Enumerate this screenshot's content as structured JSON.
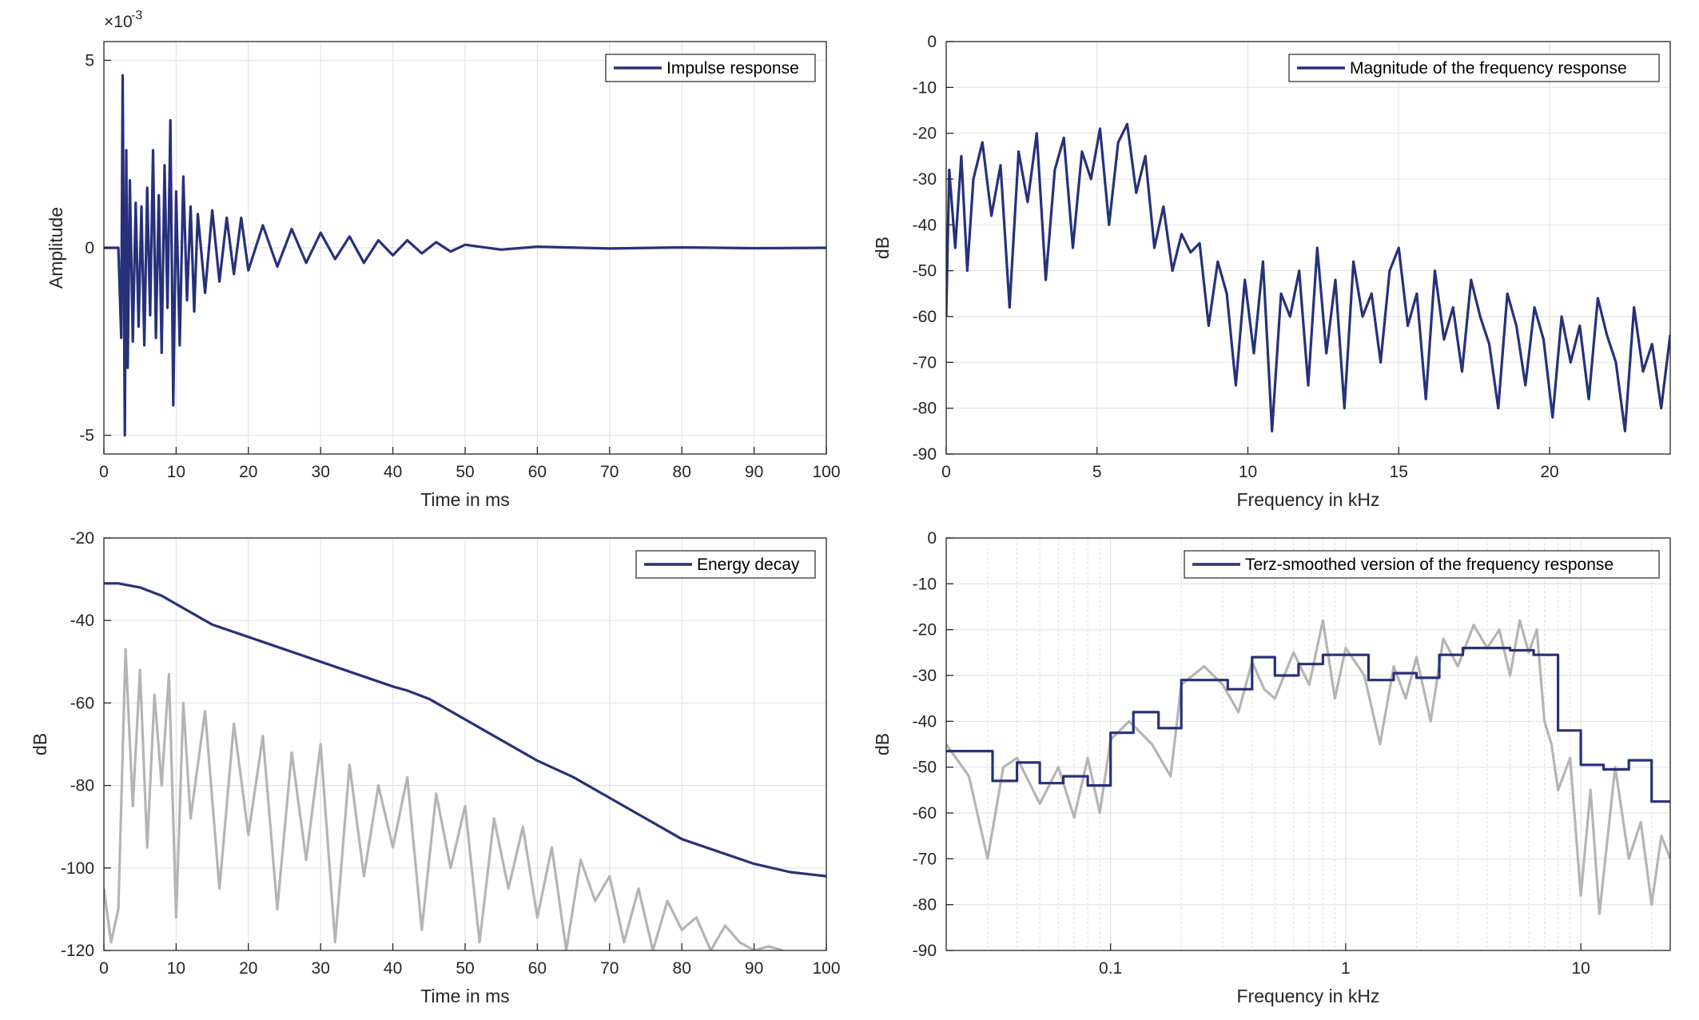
{
  "chart_data": [
    {
      "id": "impulse",
      "type": "line",
      "xlabel": "Time in ms",
      "ylabel": "Amplitude",
      "xlim": [
        0,
        100
      ],
      "ylim": [
        -5.5,
        5.5
      ],
      "exponent_label": "×10",
      "exponent_power": "-3",
      "xticks": [
        0,
        10,
        20,
        30,
        40,
        50,
        60,
        70,
        80,
        90,
        100
      ],
      "xtick_labels": [
        "0",
        "10",
        "20",
        "30",
        "40",
        "50",
        "60",
        "70",
        "80",
        "90",
        "100"
      ],
      "yticks": [
        -5,
        0,
        5
      ],
      "ytick_labels": [
        "-5",
        "0",
        "5"
      ],
      "grid": true,
      "legend_position": "top-right",
      "series": [
        {
          "name": "Impulse response",
          "color": "#27317a",
          "x": [
            0,
            2,
            2.4,
            2.6,
            2.9,
            3.1,
            3.3,
            3.6,
            4,
            4.4,
            4.8,
            5.2,
            5.6,
            6,
            6.4,
            6.8,
            7.2,
            7.6,
            8,
            8.4,
            8.8,
            9.2,
            9.6,
            10,
            10.5,
            11,
            11.5,
            12,
            12.5,
            13,
            14,
            15,
            16,
            17,
            18,
            19,
            20,
            22,
            24,
            26,
            28,
            30,
            32,
            34,
            36,
            38,
            40,
            42,
            44,
            46,
            48,
            50,
            55,
            60,
            70,
            80,
            90,
            100
          ],
          "y": [
            0,
            0,
            -2.4,
            4.6,
            -5,
            2.6,
            -3.2,
            1.8,
            -2.5,
            1.2,
            -2.1,
            1.1,
            -2.6,
            1.6,
            -1.8,
            2.6,
            -2.4,
            1.4,
            -2.8,
            2.2,
            -1.6,
            3.4,
            -4.2,
            1.5,
            -2.6,
            1.9,
            -1.4,
            1.1,
            -1.7,
            0.9,
            -1.2,
            1,
            -0.9,
            0.8,
            -0.7,
            0.8,
            -0.6,
            0.6,
            -0.5,
            0.5,
            -0.4,
            0.4,
            -0.3,
            0.3,
            -0.4,
            0.2,
            -0.2,
            0.2,
            -0.15,
            0.15,
            -0.1,
            0.08,
            -0.05,
            0.03,
            -0.02,
            0.01,
            -0.01,
            0
          ]
        }
      ]
    },
    {
      "id": "magnitude",
      "type": "line",
      "xlabel": "Frequency in kHz",
      "ylabel": "dB",
      "xlim": [
        0,
        24
      ],
      "ylim": [
        -90,
        0
      ],
      "xticks": [
        0,
        5,
        10,
        15,
        20
      ],
      "xtick_labels": [
        "0",
        "5",
        "10",
        "15",
        "20"
      ],
      "yticks": [
        0,
        -10,
        -20,
        -30,
        -40,
        -50,
        -60,
        -70,
        -80,
        -90
      ],
      "ytick_labels": [
        "0",
        "-10",
        "-20",
        "-30",
        "-40",
        "-50",
        "-60",
        "-70",
        "-80",
        "-90"
      ],
      "grid": true,
      "legend_position": "top-right",
      "series": [
        {
          "name": "Magnitude of the frequency response",
          "color": "#27317a",
          "x": [
            0,
            0.1,
            0.3,
            0.5,
            0.7,
            0.9,
            1.2,
            1.5,
            1.8,
            2.1,
            2.4,
            2.7,
            3.0,
            3.3,
            3.6,
            3.9,
            4.2,
            4.5,
            4.8,
            5.1,
            5.4,
            5.7,
            6.0,
            6.3,
            6.6,
            6.9,
            7.2,
            7.5,
            7.8,
            8.1,
            8.4,
            8.7,
            9.0,
            9.3,
            9.6,
            9.9,
            10.2,
            10.5,
            10.8,
            11.1,
            11.4,
            11.7,
            12.0,
            12.3,
            12.6,
            12.9,
            13.2,
            13.5,
            13.8,
            14.1,
            14.4,
            14.7,
            15.0,
            15.3,
            15.6,
            15.9,
            16.2,
            16.5,
            16.8,
            17.1,
            17.4,
            17.7,
            18.0,
            18.3,
            18.6,
            18.9,
            19.2,
            19.5,
            19.8,
            20.1,
            20.4,
            20.7,
            21.0,
            21.3,
            21.6,
            21.9,
            22.2,
            22.5,
            22.8,
            23.1,
            23.4,
            23.7,
            24.0
          ],
          "y": [
            -60,
            -28,
            -45,
            -25,
            -50,
            -30,
            -22,
            -38,
            -27,
            -58,
            -24,
            -35,
            -20,
            -52,
            -28,
            -21,
            -45,
            -24,
            -30,
            -19,
            -40,
            -22,
            -18,
            -33,
            -25,
            -45,
            -36,
            -50,
            -42,
            -46,
            -44,
            -62,
            -48,
            -55,
            -75,
            -52,
            -68,
            -48,
            -85,
            -55,
            -60,
            -50,
            -75,
            -45,
            -68,
            -52,
            -80,
            -48,
            -60,
            -55,
            -70,
            -50,
            -45,
            -62,
            -55,
            -78,
            -50,
            -65,
            -58,
            -72,
            -52,
            -60,
            -66,
            -80,
            -55,
            -62,
            -75,
            -58,
            -65,
            -82,
            -60,
            -70,
            -62,
            -78,
            -56,
            -64,
            -70,
            -85,
            -58,
            -72,
            -66,
            -80,
            -64
          ]
        }
      ]
    },
    {
      "id": "energy",
      "type": "line",
      "xlabel": "Time in ms",
      "ylabel": "dB",
      "xlim": [
        0,
        100
      ],
      "ylim": [
        -120,
        -20
      ],
      "xticks": [
        0,
        10,
        20,
        30,
        40,
        50,
        60,
        70,
        80,
        90,
        100
      ],
      "xtick_labels": [
        "0",
        "10",
        "20",
        "30",
        "40",
        "50",
        "60",
        "70",
        "80",
        "90",
        "100"
      ],
      "yticks": [
        -20,
        -40,
        -60,
        -80,
        -100,
        -120
      ],
      "ytick_labels": [
        "-20",
        "-40",
        "-60",
        "-80",
        "-100",
        "-120"
      ],
      "grid": true,
      "legend_position": "top-right",
      "series": [
        {
          "name": "Energy decay",
          "color": "#27317a",
          "x": [
            0,
            2,
            5,
            8,
            10,
            15,
            20,
            25,
            30,
            35,
            40,
            42,
            45,
            50,
            55,
            60,
            65,
            70,
            75,
            80,
            85,
            90,
            95,
            100
          ],
          "y": [
            -31,
            -31,
            -32,
            -34,
            -36,
            -41,
            -44,
            -47,
            -50,
            -53,
            -56,
            -57,
            -59,
            -64,
            -69,
            -74,
            -78,
            -83,
            -88,
            -93,
            -96,
            -99,
            -101,
            -102
          ]
        },
        {
          "color": "#b4b4b4",
          "x": [
            0,
            1,
            2,
            3,
            4,
            5,
            6,
            7,
            8,
            9,
            10,
            11,
            12,
            14,
            16,
            18,
            20,
            22,
            24,
            26,
            28,
            30,
            32,
            34,
            36,
            38,
            40,
            42,
            44,
            46,
            48,
            50,
            52,
            54,
            56,
            58,
            60,
            62,
            64,
            66,
            68,
            70,
            72,
            74,
            76,
            78,
            80,
            82,
            84,
            86,
            88,
            90,
            92,
            94
          ],
          "y": [
            -105,
            -118,
            -110,
            -47,
            -85,
            -52,
            -95,
            -58,
            -80,
            -53,
            -112,
            -60,
            -88,
            -62,
            -105,
            -65,
            -92,
            -68,
            -110,
            -72,
            -98,
            -70,
            -118,
            -75,
            -102,
            -80,
            -95,
            -78,
            -115,
            -82,
            -100,
            -85,
            -118,
            -88,
            -105,
            -90,
            -112,
            -95,
            -120,
            -98,
            -108,
            -102,
            -118,
            -105,
            -120,
            -108,
            -115,
            -112,
            -120,
            -114,
            -118,
            -120,
            -119,
            -120
          ]
        }
      ]
    },
    {
      "id": "terz",
      "type": "line",
      "xlabel": "Frequency in kHz",
      "ylabel": "dB",
      "xscale": "log",
      "xlim": [
        0.02,
        24
      ],
      "ylim": [
        -90,
        0
      ],
      "xticks": [
        0.1,
        1,
        10
      ],
      "xtick_labels": [
        "0.1",
        "1",
        "10"
      ],
      "yticks": [
        0,
        -10,
        -20,
        -30,
        -40,
        -50,
        -60,
        -70,
        -80,
        -90
      ],
      "ytick_labels": [
        "0",
        "-10",
        "-20",
        "-30",
        "-40",
        "-50",
        "-60",
        "-70",
        "-80",
        "-90"
      ],
      "grid": true,
      "legend_position": "top-right",
      "series": [
        {
          "name": "Terz-smoothed version of the frequency response",
          "color": "#27317a",
          "step_edges": [
            0.02,
            0.0315,
            0.04,
            0.05,
            0.063,
            0.08,
            0.1,
            0.125,
            0.16,
            0.2,
            0.25,
            0.315,
            0.4,
            0.5,
            0.63,
            0.8,
            1.0,
            1.25,
            1.6,
            2.0,
            2.5,
            3.15,
            4.0,
            5.0,
            6.3,
            8.0,
            10.0,
            12.5,
            16.0,
            20.0,
            24.0
          ],
          "values": [
            -46.5,
            -53,
            -49,
            -53.5,
            -52,
            -54,
            -42.5,
            -38,
            -41.5,
            -31,
            -31,
            -33,
            -26,
            -30,
            -27.5,
            -25.5,
            -25.5,
            -31,
            -29.5,
            -30.5,
            -25.5,
            -24,
            -24,
            -24.5,
            -25.5,
            -42,
            -49.5,
            -50.5,
            -48.5,
            -57.5
          ]
        },
        {
          "color": "#b4b4b4",
          "x": [
            0.02,
            0.025,
            0.03,
            0.035,
            0.04,
            0.05,
            0.06,
            0.07,
            0.08,
            0.09,
            0.1,
            0.12,
            0.15,
            0.18,
            0.2,
            0.25,
            0.3,
            0.35,
            0.4,
            0.45,
            0.5,
            0.6,
            0.7,
            0.8,
            0.9,
            1.0,
            1.2,
            1.4,
            1.6,
            1.8,
            2.0,
            2.3,
            2.6,
            3.0,
            3.5,
            4.0,
            4.5,
            5.0,
            5.5,
            6.0,
            6.5,
            7.0,
            7.5,
            8.0,
            9.0,
            10.0,
            11.0,
            12.0,
            14.0,
            16.0,
            18.0,
            20.0,
            22.0,
            24.0
          ],
          "y": [
            -45,
            -52,
            -70,
            -50,
            -48,
            -58,
            -50,
            -61,
            -48,
            -60,
            -44,
            -40,
            -45,
            -52,
            -32,
            -28,
            -32,
            -38,
            -27,
            -33,
            -35,
            -25,
            -32,
            -18,
            -35,
            -24,
            -30,
            -45,
            -28,
            -35,
            -26,
            -40,
            -22,
            -28,
            -19,
            -24,
            -20,
            -30,
            -18,
            -25,
            -20,
            -40,
            -45,
            -55,
            -48,
            -78,
            -55,
            -82,
            -50,
            -70,
            -62,
            -80,
            -65,
            -70
          ]
        }
      ]
    }
  ]
}
